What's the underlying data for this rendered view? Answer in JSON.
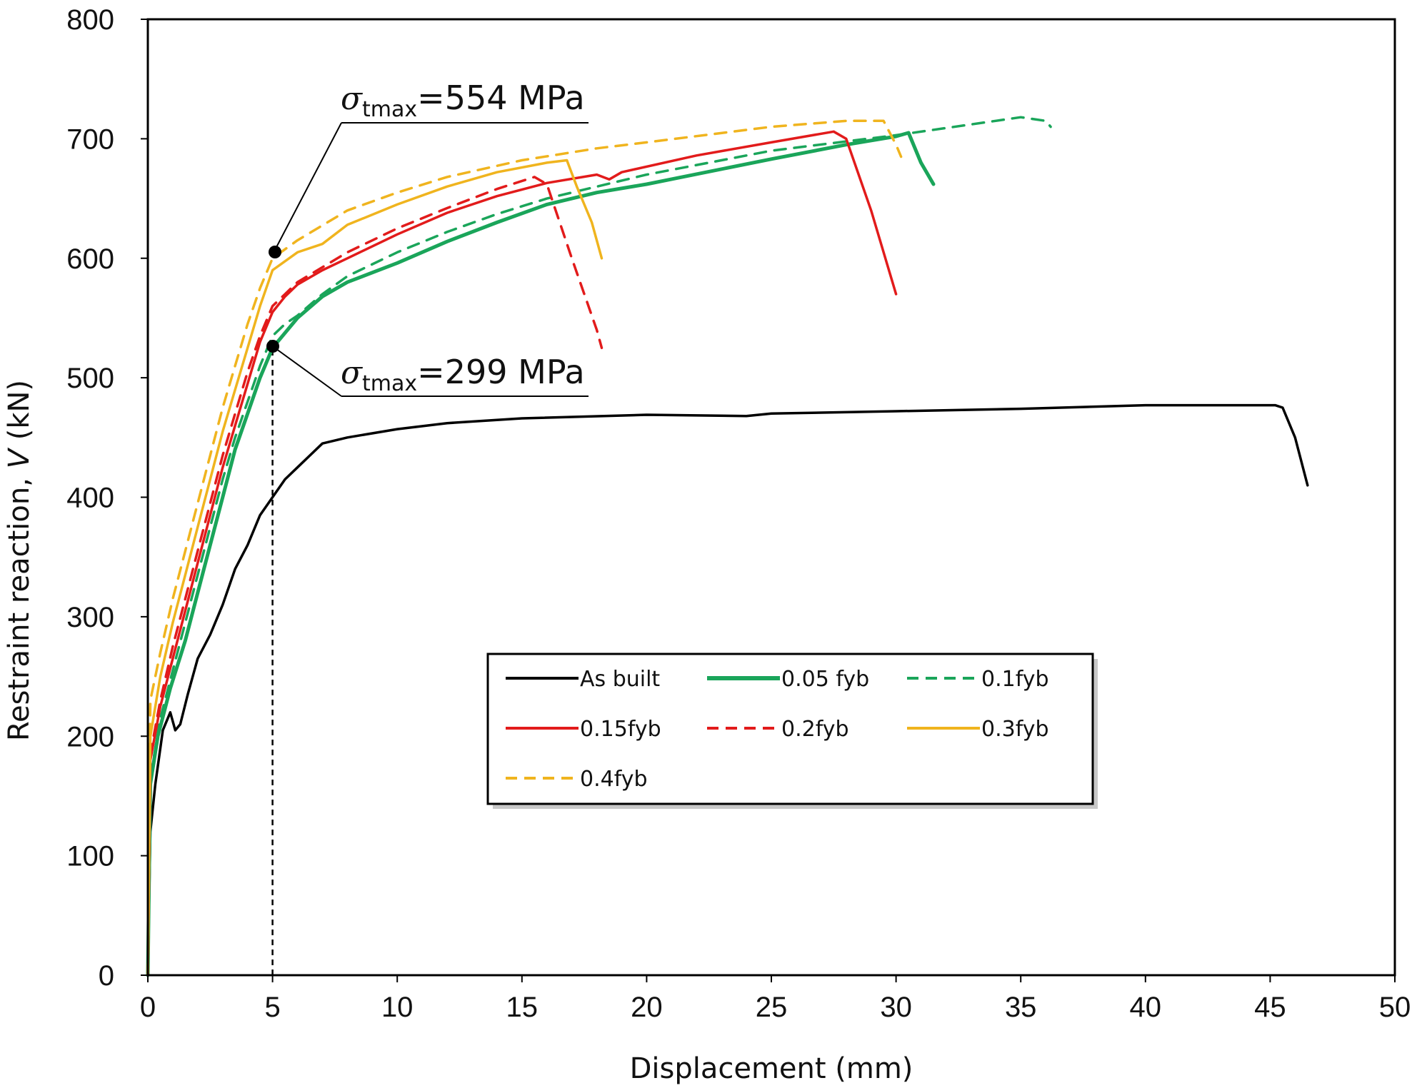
{
  "chart_data": {
    "type": "line",
    "xlabel": "Displacement (mm)",
    "ylabel_main": "Restraint reaction, ",
    "ylabel_var": "V",
    "ylabel_unit": " (kN)",
    "xlim": [
      0,
      50
    ],
    "ylim": [
      0,
      800
    ],
    "x_ticks": [
      "0",
      "5",
      "10",
      "15",
      "20",
      "25",
      "30",
      "35",
      "40",
      "45",
      "50"
    ],
    "y_ticks": [
      "0",
      "100",
      "200",
      "300",
      "400",
      "500",
      "600",
      "700",
      "800"
    ],
    "grid": false,
    "legend_position": "lower-right",
    "reference_line": {
      "x": 5,
      "style": "dashed",
      "color": "#000000"
    },
    "annotations": [
      {
        "symbol": "σ",
        "subscript": "tmax",
        "text": "=554 MPa",
        "point": {
          "x": 5.1,
          "y": 606
        }
      },
      {
        "symbol": "σ",
        "subscript": "tmax",
        "text": "=299 MPa",
        "point": {
          "x": 5.0,
          "y": 526
        }
      }
    ],
    "series": [
      {
        "name": "As built",
        "color": "#000000",
        "dash": "solid",
        "points": [
          [
            0,
            0
          ],
          [
            0.1,
            120
          ],
          [
            0.3,
            160
          ],
          [
            0.6,
            205
          ],
          [
            0.9,
            220
          ],
          [
            1.1,
            205
          ],
          [
            1.3,
            210
          ],
          [
            1.6,
            235
          ],
          [
            2,
            265
          ],
          [
            2.5,
            285
          ],
          [
            3,
            310
          ],
          [
            3.5,
            340
          ],
          [
            4,
            360
          ],
          [
            4.5,
            385
          ],
          [
            5,
            400
          ],
          [
            5.5,
            415
          ],
          [
            6,
            425
          ],
          [
            6.5,
            435
          ],
          [
            7,
            445
          ],
          [
            8,
            450
          ],
          [
            10,
            457
          ],
          [
            12,
            462
          ],
          [
            15,
            466
          ],
          [
            20,
            469
          ],
          [
            24,
            468
          ],
          [
            25,
            470
          ],
          [
            30,
            472
          ],
          [
            35,
            474
          ],
          [
            40,
            477
          ],
          [
            45.2,
            477
          ],
          [
            45.5,
            475
          ],
          [
            46,
            450
          ],
          [
            46.5,
            410
          ]
        ]
      },
      {
        "name": "0.05 fyb",
        "color": "#1aa55a",
        "dash": "solid",
        "points": [
          [
            0,
            0
          ],
          [
            0.1,
            160
          ],
          [
            0.4,
            200
          ],
          [
            0.9,
            240
          ],
          [
            1.5,
            280
          ],
          [
            2,
            320
          ],
          [
            2.5,
            360
          ],
          [
            3,
            400
          ],
          [
            3.5,
            440
          ],
          [
            4,
            470
          ],
          [
            4.5,
            500
          ],
          [
            5,
            525
          ],
          [
            6,
            550
          ],
          [
            7,
            568
          ],
          [
            8,
            580
          ],
          [
            10,
            596
          ],
          [
            12,
            614
          ],
          [
            14,
            630
          ],
          [
            16,
            645
          ],
          [
            18,
            655
          ],
          [
            20,
            662
          ],
          [
            25,
            683
          ],
          [
            28,
            695
          ],
          [
            30,
            702
          ],
          [
            30.5,
            705
          ],
          [
            31,
            680
          ],
          [
            31.5,
            662
          ]
        ]
      },
      {
        "name": "0.1fyb",
        "color": "#1aa55a",
        "dash": "dashed",
        "points": [
          [
            0,
            0
          ],
          [
            0.1,
            165
          ],
          [
            0.5,
            215
          ],
          [
            1,
            255
          ],
          [
            1.5,
            295
          ],
          [
            2,
            335
          ],
          [
            2.5,
            375
          ],
          [
            3,
            415
          ],
          [
            3.5,
            450
          ],
          [
            4,
            480
          ],
          [
            4.5,
            510
          ],
          [
            5,
            535
          ],
          [
            5.5,
            545
          ],
          [
            6,
            552
          ],
          [
            7,
            570
          ],
          [
            8,
            585
          ],
          [
            10,
            605
          ],
          [
            12,
            622
          ],
          [
            14,
            637
          ],
          [
            16,
            650
          ],
          [
            20,
            670
          ],
          [
            25,
            690
          ],
          [
            30,
            703
          ],
          [
            33,
            712
          ],
          [
            35,
            718
          ],
          [
            36,
            715
          ],
          [
            36.2,
            710
          ]
        ]
      },
      {
        "name": "0.15fyb",
        "color": "#e21b1b",
        "dash": "solid",
        "points": [
          [
            0,
            0
          ],
          [
            0.1,
            180
          ],
          [
            0.5,
            225
          ],
          [
            1,
            265
          ],
          [
            1.5,
            305
          ],
          [
            2,
            345
          ],
          [
            2.5,
            385
          ],
          [
            3,
            425
          ],
          [
            3.5,
            460
          ],
          [
            4,
            495
          ],
          [
            4.5,
            530
          ],
          [
            5,
            555
          ],
          [
            5.5,
            568
          ],
          [
            6,
            578
          ],
          [
            7,
            590
          ],
          [
            8,
            600
          ],
          [
            10,
            620
          ],
          [
            12,
            638
          ],
          [
            14,
            652
          ],
          [
            16,
            663
          ],
          [
            18,
            670
          ],
          [
            18.5,
            666
          ],
          [
            19,
            672
          ],
          [
            22,
            686
          ],
          [
            25,
            697
          ],
          [
            27.5,
            706
          ],
          [
            28,
            700
          ],
          [
            29,
            640
          ],
          [
            30,
            570
          ]
        ]
      },
      {
        "name": "0.2fyb",
        "color": "#e21b1b",
        "dash": "dashed",
        "points": [
          [
            0,
            0
          ],
          [
            0.1,
            185
          ],
          [
            0.5,
            230
          ],
          [
            1,
            275
          ],
          [
            1.5,
            315
          ],
          [
            2,
            355
          ],
          [
            2.5,
            395
          ],
          [
            3,
            435
          ],
          [
            3.5,
            470
          ],
          [
            4,
            505
          ],
          [
            4.5,
            535
          ],
          [
            5,
            560
          ],
          [
            5.5,
            570
          ],
          [
            6,
            580
          ],
          [
            8,
            605
          ],
          [
            10,
            625
          ],
          [
            12,
            642
          ],
          [
            14,
            658
          ],
          [
            15.5,
            668
          ],
          [
            16,
            662
          ],
          [
            17,
            600
          ],
          [
            18,
            540
          ],
          [
            18.2,
            525
          ]
        ]
      },
      {
        "name": "0.3fyb",
        "color": "#f0b41e",
        "dash": "solid",
        "points": [
          [
            0,
            0
          ],
          [
            0.1,
            200
          ],
          [
            0.5,
            250
          ],
          [
            1,
            295
          ],
          [
            1.5,
            335
          ],
          [
            2,
            375
          ],
          [
            2.5,
            415
          ],
          [
            3,
            455
          ],
          [
            3.5,
            490
          ],
          [
            4,
            525
          ],
          [
            4.5,
            560
          ],
          [
            5,
            590
          ],
          [
            6,
            605
          ],
          [
            7,
            612
          ],
          [
            8,
            628
          ],
          [
            10,
            645
          ],
          [
            12,
            660
          ],
          [
            14,
            672
          ],
          [
            16,
            680
          ],
          [
            16.8,
            682
          ],
          [
            17.2,
            660
          ],
          [
            17.8,
            630
          ],
          [
            18.2,
            600
          ]
        ]
      },
      {
        "name": "0.4fyb",
        "color": "#f0b41e",
        "dash": "dashed",
        "points": [
          [
            0,
            0
          ],
          [
            0.1,
            230
          ],
          [
            0.5,
            270
          ],
          [
            1,
            315
          ],
          [
            1.5,
            355
          ],
          [
            2,
            395
          ],
          [
            2.5,
            435
          ],
          [
            3,
            475
          ],
          [
            3.5,
            510
          ],
          [
            4,
            545
          ],
          [
            4.5,
            575
          ],
          [
            5,
            600
          ],
          [
            6,
            615
          ],
          [
            8,
            640
          ],
          [
            10,
            655
          ],
          [
            12,
            668
          ],
          [
            15,
            682
          ],
          [
            18,
            692
          ],
          [
            20,
            697
          ],
          [
            25,
            710
          ],
          [
            28,
            715
          ],
          [
            29.5,
            715
          ],
          [
            30,
            695
          ],
          [
            30.2,
            685
          ]
        ]
      }
    ]
  }
}
